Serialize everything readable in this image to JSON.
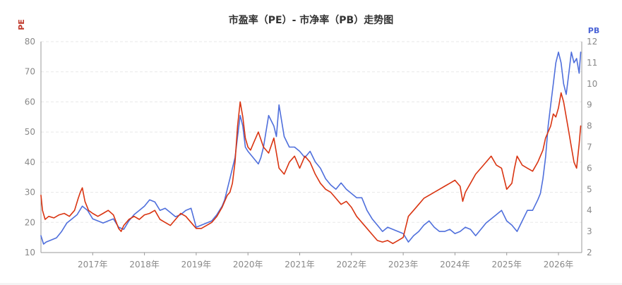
{
  "chart_data": {
    "type": "line",
    "title": "市盈率（PE）- 市净率（PB）走势图",
    "y_left_label": "PE",
    "y_right_label": "PB",
    "y_left_lim": [
      10,
      80
    ],
    "y_left_ticks": [
      10,
      20,
      30,
      40,
      50,
      60,
      70,
      80
    ],
    "y_right_lim": [
      2,
      12
    ],
    "y_right_ticks": [
      2,
      3,
      4,
      5,
      6,
      7,
      8,
      9,
      10,
      11,
      12
    ],
    "x_lim": [
      2016.0,
      2026.45
    ],
    "x_tick_labels": [
      "2017年",
      "2018年",
      "2019年",
      "2020年",
      "2021年",
      "2022年",
      "2023年",
      "2024年",
      "2025年",
      "2026年"
    ],
    "x_tick_positions": [
      2017,
      2018,
      2019,
      2020,
      2021,
      2022,
      2023,
      2024,
      2025,
      2026
    ],
    "grid": "horizontal dashed",
    "colors": {
      "pe": "#d93411",
      "pb": "#4f6fdc",
      "pe_axis": "#c0392b",
      "pb_axis": "#4a63d6"
    },
    "series": [
      {
        "axis": "left",
        "x": [
          2016.0,
          2016.03,
          2016.08,
          2016.15,
          2016.25,
          2016.35,
          2016.45,
          2016.55,
          2016.65,
          2016.72,
          2016.76,
          2016.8,
          2016.85,
          2016.92,
          2017.0,
          2017.1,
          2017.2,
          2017.3,
          2017.4,
          2017.5,
          2017.55,
          2017.6,
          2017.7,
          2017.8,
          2017.9,
          2018.0,
          2018.1,
          2018.2,
          2018.3,
          2018.4,
          2018.5,
          2018.6,
          2018.7,
          2018.8,
          2018.9,
          2019.0,
          2019.1,
          2019.2,
          2019.3,
          2019.35,
          2019.4,
          2019.5,
          2019.55,
          2019.6,
          2019.65,
          2019.7,
          2019.75,
          2019.8,
          2019.85,
          2019.9,
          2019.95,
          2020.0,
          2020.05,
          2020.1,
          2020.2,
          2020.3,
          2020.4,
          2020.5,
          2020.6,
          2020.7,
          2020.8,
          2020.9,
          2021.0,
          2021.1,
          2021.2,
          2021.3,
          2021.4,
          2021.5,
          2021.6,
          2021.7,
          2021.8,
          2021.9,
          2022.0,
          2022.1,
          2022.2,
          2022.3,
          2022.4,
          2022.5,
          2022.6,
          2022.7,
          2022.8,
          2022.9,
          2023.0,
          2023.1,
          2023.2,
          2023.3,
          2023.4,
          2023.5,
          2023.6,
          2023.7,
          2023.8,
          2023.9,
          2024.0,
          2024.1,
          2024.15,
          2024.2,
          2024.3,
          2024.4,
          2024.5,
          2024.6,
          2024.7,
          2024.8,
          2024.9,
          2025.0,
          2025.1,
          2025.15,
          2025.2,
          2025.3,
          2025.4,
          2025.5,
          2025.6,
          2025.7,
          2025.75,
          2025.8,
          2025.85,
          2025.9,
          2025.95,
          2026.0,
          2026.05,
          2026.1,
          2026.15,
          2026.2,
          2026.25,
          2026.3,
          2026.35,
          2026.4,
          2026.43
        ],
        "values": [
          29,
          24,
          21,
          22,
          21.5,
          22.5,
          23,
          22,
          24,
          28,
          30,
          31.5,
          27,
          24,
          23,
          22,
          23,
          24,
          22.5,
          18,
          17,
          19,
          21,
          22,
          21,
          22.5,
          23,
          24,
          21,
          20,
          19,
          21,
          23,
          22,
          20,
          18,
          18,
          19,
          20,
          21,
          22,
          25,
          27,
          29,
          30,
          33,
          40,
          52,
          60,
          55,
          48,
          45,
          44,
          46,
          50,
          45,
          43,
          48,
          38,
          36,
          40,
          42,
          38,
          42,
          40,
          36,
          33,
          31,
          30,
          28,
          26,
          27,
          25,
          22,
          20,
          18,
          16,
          14,
          13.5,
          14,
          13,
          14,
          15,
          22,
          24,
          26,
          28,
          29,
          30,
          31,
          32,
          33,
          34,
          32,
          27,
          30,
          33,
          36,
          38,
          40,
          42,
          39,
          38,
          31,
          33,
          38,
          42,
          39,
          38,
          37,
          40,
          44,
          48,
          50,
          52,
          56,
          55,
          58,
          63,
          60,
          55,
          50,
          45,
          40,
          38,
          46,
          52
        ]
      },
      {
        "axis": "right",
        "x": [
          2016.0,
          2016.05,
          2016.1,
          2016.2,
          2016.3,
          2016.4,
          2016.5,
          2016.6,
          2016.7,
          2016.8,
          2016.9,
          2017.0,
          2017.1,
          2017.2,
          2017.3,
          2017.4,
          2017.5,
          2017.6,
          2017.7,
          2017.8,
          2017.9,
          2018.0,
          2018.1,
          2018.2,
          2018.3,
          2018.4,
          2018.5,
          2018.6,
          2018.7,
          2018.8,
          2018.9,
          2019.0,
          2019.1,
          2019.2,
          2019.3,
          2019.4,
          2019.5,
          2019.55,
          2019.6,
          2019.65,
          2019.7,
          2019.75,
          2019.8,
          2019.85,
          2019.9,
          2019.95,
          2020.0,
          2020.1,
          2020.2,
          2020.25,
          2020.3,
          2020.4,
          2020.5,
          2020.55,
          2020.6,
          2020.7,
          2020.8,
          2020.9,
          2021.0,
          2021.1,
          2021.2,
          2021.3,
          2021.4,
          2021.5,
          2021.6,
          2021.7,
          2021.8,
          2021.9,
          2022.0,
          2022.1,
          2022.2,
          2022.3,
          2022.4,
          2022.5,
          2022.6,
          2022.7,
          2022.8,
          2022.9,
          2023.0,
          2023.1,
          2023.2,
          2023.3,
          2023.4,
          2023.5,
          2023.6,
          2023.7,
          2023.8,
          2023.9,
          2024.0,
          2024.1,
          2024.2,
          2024.3,
          2024.4,
          2024.5,
          2024.6,
          2024.7,
          2024.8,
          2024.9,
          2025.0,
          2025.1,
          2025.2,
          2025.3,
          2025.4,
          2025.5,
          2025.6,
          2025.65,
          2025.7,
          2025.75,
          2025.8,
          2025.85,
          2025.9,
          2025.95,
          2026.0,
          2026.05,
          2026.1,
          2026.15,
          2026.2,
          2026.25,
          2026.3,
          2026.35,
          2026.4,
          2026.43
        ],
        "values": [
          2.8,
          2.4,
          2.5,
          2.6,
          2.7,
          3.0,
          3.4,
          3.6,
          3.8,
          4.2,
          4.0,
          3.6,
          3.5,
          3.4,
          3.5,
          3.6,
          3.2,
          3.1,
          3.5,
          3.8,
          4.0,
          4.2,
          4.5,
          4.4,
          4.0,
          4.1,
          3.9,
          3.7,
          3.8,
          4.0,
          4.1,
          3.2,
          3.3,
          3.4,
          3.5,
          3.8,
          4.2,
          4.5,
          5.0,
          5.5,
          6.0,
          6.5,
          7.5,
          8.5,
          8.0,
          7.0,
          6.8,
          6.5,
          6.2,
          6.5,
          7.0,
          8.5,
          8.0,
          7.5,
          9.0,
          7.5,
          7.0,
          7.0,
          6.8,
          6.5,
          6.8,
          6.3,
          6.0,
          5.5,
          5.2,
          5.0,
          5.3,
          5.0,
          4.8,
          4.6,
          4.6,
          4.0,
          3.6,
          3.3,
          3.0,
          3.2,
          3.1,
          3.0,
          2.9,
          2.5,
          2.8,
          3.0,
          3.3,
          3.5,
          3.2,
          3.0,
          3.0,
          3.1,
          2.9,
          3.0,
          3.2,
          3.1,
          2.8,
          3.1,
          3.4,
          3.6,
          3.8,
          4.0,
          3.5,
          3.3,
          3.0,
          3.5,
          4.0,
          4.0,
          4.5,
          4.8,
          5.5,
          6.5,
          8.0,
          9.0,
          10.0,
          11.0,
          11.5,
          11.0,
          10.0,
          9.5,
          10.5,
          11.5,
          11.0,
          11.2,
          10.5,
          11.5
        ]
      }
    ]
  }
}
